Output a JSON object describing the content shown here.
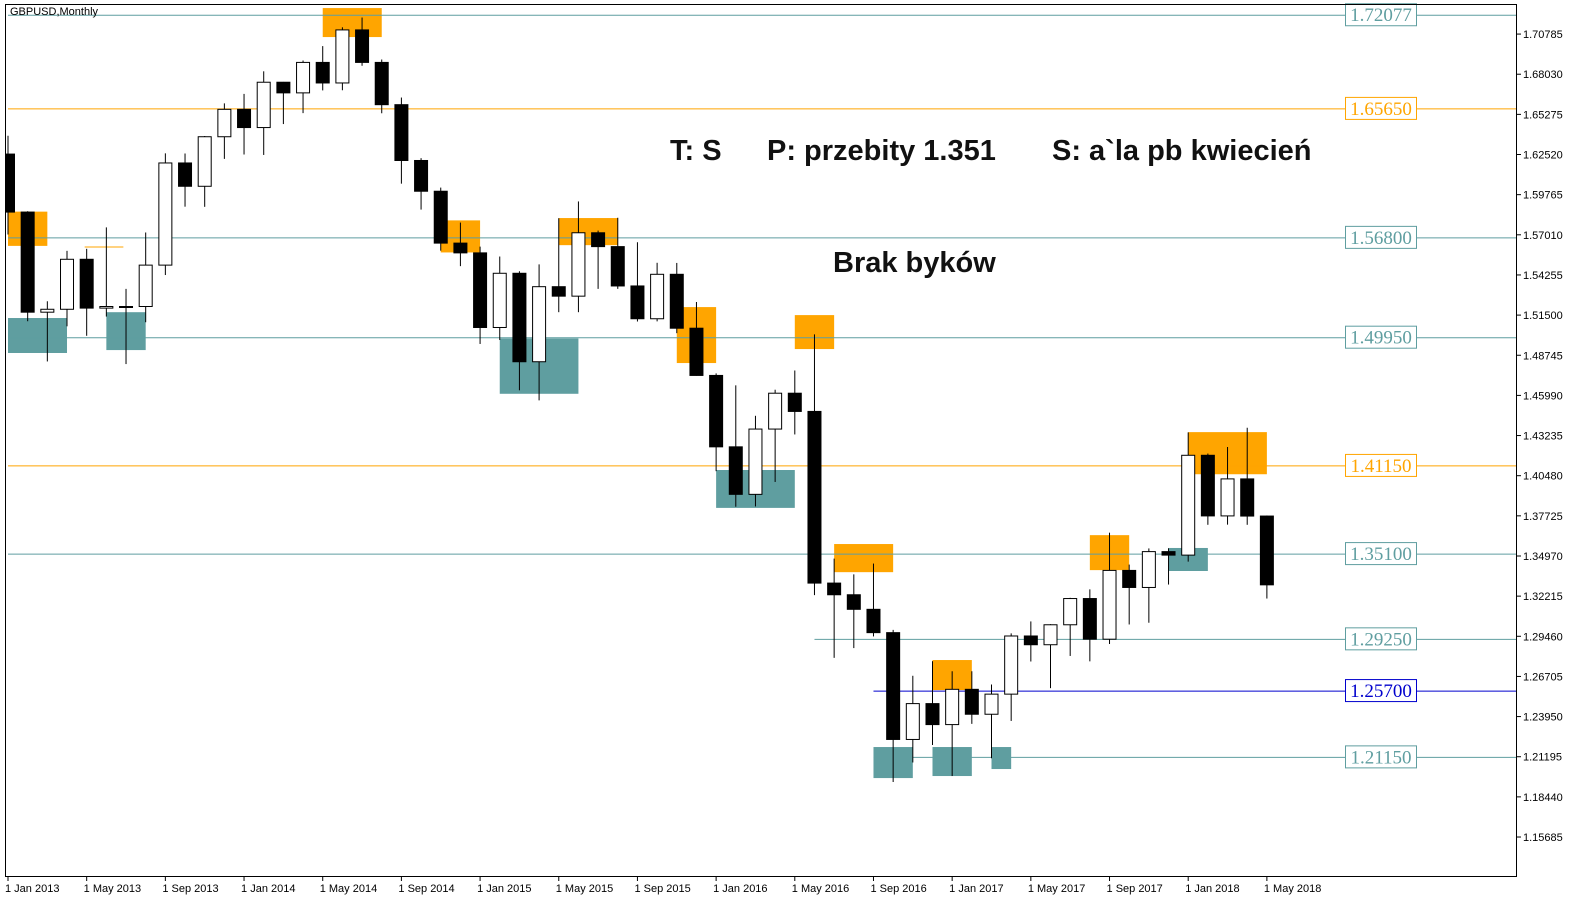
{
  "chart_data": {
    "type": "candlestick",
    "title": "GBPUSD,Monthly",
    "annotations": [
      "T: S",
      "P: przebity 1.351",
      "S: a`la pb kwiecień",
      "Brak byków"
    ],
    "x": [
      "1 Jan 2013",
      "1 Feb 2013",
      "1 Mar 2013",
      "1 Apr 2013",
      "1 May 2013",
      "1 Jun 2013",
      "1 Jul 2013",
      "1 Aug 2013",
      "1 Sep 2013",
      "1 Oct 2013",
      "1 Nov 2013",
      "1 Dec 2013",
      "1 Jan 2014",
      "1 Feb 2014",
      "1 Mar 2014",
      "1 Apr 2014",
      "1 May 2014",
      "1 Jun 2014",
      "1 Jul 2014",
      "1 Aug 2014",
      "1 Sep 2014",
      "1 Oct 2014",
      "1 Nov 2014",
      "1 Dec 2014",
      "1 Jan 2015",
      "1 Feb 2015",
      "1 Mar 2015",
      "1 Apr 2015",
      "1 May 2015",
      "1 Jun 2015",
      "1 Jul 2015",
      "1 Aug 2015",
      "1 Sep 2015",
      "1 Oct 2015",
      "1 Nov 2015",
      "1 Dec 2015",
      "1 Jan 2016",
      "1 Feb 2016",
      "1 Mar 2016",
      "1 Apr 2016",
      "1 May 2016",
      "1 Jun 2016",
      "1 Jul 2016",
      "1 Aug 2016",
      "1 Sep 2016",
      "1 Oct 2016",
      "1 Nov 2016",
      "1 Dec 2016",
      "1 Jan 2017",
      "1 Feb 2017",
      "1 Mar 2017",
      "1 Apr 2017",
      "1 May 2017",
      "1 Jun 2017",
      "1 Jul 2017",
      "1 Aug 2017",
      "1 Sep 2017",
      "1 Oct 2017",
      "1 Nov 2017",
      "1 Dec 2017",
      "1 Jan 2018",
      "1 Feb 2018",
      "1 Mar 2018",
      "1 Apr 2018",
      "1 May 2018"
    ],
    "open": [
      1.6255,
      1.5857,
      1.517,
      1.519,
      1.5533,
      1.5198,
      1.5209,
      1.5209,
      1.5493,
      1.6194,
      1.6034,
      1.6374,
      1.6562,
      1.6437,
      1.6748,
      1.6675,
      1.6884,
      1.6743,
      1.7107,
      1.6884,
      1.6594,
      1.6211,
      1.6,
      1.5644,
      1.5577,
      1.5065,
      1.5437,
      1.483,
      1.5345,
      1.528,
      1.5715,
      1.562,
      1.535,
      1.5125,
      1.543,
      1.506,
      1.4736,
      1.4246,
      1.392,
      1.4368,
      1.4614,
      1.4489,
      1.3311,
      1.3231,
      1.3131,
      1.2971,
      1.2238,
      1.2484,
      1.234,
      1.2582,
      1.2411,
      1.2549,
      1.2948,
      1.2888,
      1.3025,
      1.3205,
      1.2926,
      1.3398,
      1.3281,
      1.3527,
      1.3503,
      1.4188,
      1.3772,
      1.4026,
      1.3771
    ],
    "high": [
      1.6381,
      1.5863,
      1.5245,
      1.5591,
      1.5605,
      1.5752,
      1.533,
      1.5717,
      1.626,
      1.6259,
      1.6379,
      1.6603,
      1.6668,
      1.6823,
      1.675,
      1.6897,
      1.6996,
      1.7125,
      1.7192,
      1.6904,
      1.6643,
      1.6227,
      1.6025,
      1.5785,
      1.562,
      1.5552,
      1.5451,
      1.5498,
      1.5815,
      1.593,
      1.573,
      1.5818,
      1.565,
      1.5509,
      1.5508,
      1.524,
      1.475,
      1.4668,
      1.4459,
      1.4638,
      1.477,
      1.5018,
      1.3479,
      1.3371,
      1.3445,
      1.299,
      1.2675,
      1.2775,
      1.2706,
      1.2706,
      1.2615,
      1.2966,
      1.3048,
      1.3029,
      1.321,
      1.3268,
      1.3657,
      1.3438,
      1.3549,
      1.355,
      1.4345,
      1.42,
      1.4245,
      1.4377,
      1.3775
    ],
    "low": [
      1.5703,
      1.5108,
      1.4832,
      1.5073,
      1.5008,
      1.514,
      1.4814,
      1.5101,
      1.5425,
      1.5894,
      1.5893,
      1.6222,
      1.6252,
      1.6249,
      1.6461,
      1.6536,
      1.6692,
      1.6693,
      1.6861,
      1.6535,
      1.6052,
      1.5874,
      1.5592,
      1.5486,
      1.4952,
      1.4979,
      1.4634,
      1.4565,
      1.517,
      1.517,
      1.533,
      1.533,
      1.5106,
      1.5107,
      1.5026,
      1.4734,
      1.4079,
      1.3835,
      1.3837,
      1.4005,
      1.4331,
      1.3228,
      1.2798,
      1.2865,
      1.2945,
      1.1946,
      1.208,
      1.22,
      1.1987,
      1.2345,
      1.2109,
      1.2365,
      1.2773,
      1.259,
      1.2811,
      1.2774,
      1.2893,
      1.3027,
      1.3039,
      1.3301,
      1.3458,
      1.3711,
      1.3712,
      1.3711,
      1.3205
    ],
    "close": [
      1.5857,
      1.517,
      1.519,
      1.5533,
      1.5198,
      1.5209,
      1.5209,
      1.5493,
      1.6194,
      1.6034,
      1.6374,
      1.6562,
      1.6437,
      1.6748,
      1.6675,
      1.6884,
      1.6743,
      1.7107,
      1.6884,
      1.6594,
      1.6211,
      1.6,
      1.5644,
      1.5577,
      1.5065,
      1.5437,
      1.483,
      1.5345,
      1.528,
      1.5715,
      1.562,
      1.535,
      1.5125,
      1.543,
      1.506,
      1.4736,
      1.4246,
      1.392,
      1.4368,
      1.4614,
      1.4489,
      1.3311,
      1.3231,
      1.3131,
      1.2971,
      1.2238,
      1.2484,
      1.234,
      1.2582,
      1.2411,
      1.2549,
      1.2948,
      1.2888,
      1.3025,
      1.3205,
      1.2926,
      1.3398,
      1.3281,
      1.3527,
      1.3503,
      1.4188,
      1.3772,
      1.4026,
      1.3771,
      1.3299
    ],
    "bull_color": "#ffffff",
    "bear_color": "#000000",
    "xticks": [
      "1 Jan 2013",
      "1 May 2013",
      "1 Sep 2013",
      "1 Jan 2014",
      "1 May 2014",
      "1 Sep 2014",
      "1 Jan 2015",
      "1 May 2015",
      "1 Sep 2015",
      "1 Jan 2016",
      "1 May 2016",
      "1 Sep 2016",
      "1 Jan 2017",
      "1 May 2017",
      "1 Sep 2017",
      "1 Jan 2018",
      "1 May 2018"
    ],
    "ylim": [
      1.1301,
      1.7278
    ],
    "yticks": [
      1.70785,
      {
        "value": 1.6803,
        "label": "1.68030"
      },
      1.65275,
      {
        "value": 1.6252,
        "label": "1.62520"
      },
      1.59765,
      {
        "value": 1.5701,
        "label": "1.57010"
      },
      1.54255,
      {
        "value": 1.515,
        "label": "1.51500"
      },
      1.48745,
      {
        "value": 1.4599,
        "label": "1.45990"
      },
      1.43235,
      {
        "value": 1.4048,
        "label": "1.40480"
      },
      1.37725,
      {
        "value": 1.3497,
        "label": "1.34970"
      },
      1.32215,
      {
        "value": 1.2946,
        "label": "1.29460"
      },
      1.26705,
      {
        "value": 1.2395,
        "label": "1.23950"
      },
      1.21195,
      {
        "value": 1.1844,
        "label": "1.18440"
      },
      1.15685
    ],
    "levels": [
      {
        "value": 1.72077,
        "label": "1.72077",
        "color": "#5f9ea0",
        "from": "1 Jan 2013"
      },
      {
        "value": 1.6565,
        "label": "1.65650",
        "color": "#ffa500",
        "from": "1 Jan 2013"
      },
      {
        "value": 1.568,
        "label": "1.56800",
        "color": "#5f9ea0",
        "from": "1 Jan 2013"
      },
      {
        "value": 1.4995,
        "label": "1.49950",
        "color": "#5f9ea0",
        "from": "1 Jan 2013"
      },
      {
        "value": 1.4115,
        "label": "1.41150",
        "color": "#ffa500",
        "from": "1 Jan 2013"
      },
      {
        "value": 1.351,
        "label": "1.35100",
        "color": "#5f9ea0",
        "from": "1 Jan 2013"
      },
      {
        "value": 1.2925,
        "label": "1.29250",
        "color": "#5f9ea0",
        "from": "1 Jun 2016"
      },
      {
        "value": 1.257,
        "label": "1.25700",
        "color": "#0000cd",
        "from": "1 Sep 2016"
      },
      {
        "value": 1.2115,
        "label": "1.21150",
        "color": "#5f9ea0",
        "from": "1 Sep 2016"
      }
    ],
    "segments": [
      {
        "value": 1.5617,
        "color": "#ffa500",
        "from": "1 May 2013",
        "to": "1 Jun 2013"
      }
    ],
    "zones": [
      {
        "from": "1 Jan 2013",
        "to": "1 Mar 2013",
        "low": 1.5625,
        "high": 1.586,
        "color": "#ffa500"
      },
      {
        "from": "1 May 2014",
        "to": "1 Aug 2014",
        "low": 1.7058,
        "high": 1.7257,
        "color": "#ffa500"
      },
      {
        "from": "1 Nov 2014",
        "to": "1 Jan 2015",
        "low": 1.558,
        "high": 1.58,
        "color": "#ffa500"
      },
      {
        "from": "1 May 2015",
        "to": "1 Aug 2015",
        "low": 1.563,
        "high": 1.5816,
        "color": "#ffa500"
      },
      {
        "from": "1 Nov 2015",
        "to": "1 Jan 2016",
        "low": 1.4821,
        "high": 1.5205,
        "color": "#ffa500"
      },
      {
        "from": "1 May 2016",
        "to": "1 Jul 2016",
        "low": 1.4917,
        "high": 1.515,
        "color": "#ffa500"
      },
      {
        "from": "1 Jul 2016",
        "to": "1 Oct 2016",
        "low": 1.3386,
        "high": 1.3579,
        "color": "#ffa500"
      },
      {
        "from": "1 Dec 2016",
        "to": "1 Feb 2017",
        "low": 1.2577,
        "high": 1.2783,
        "color": "#ffa500"
      },
      {
        "from": "1 Aug 2017",
        "to": "1 Oct 2017",
        "low": 1.34,
        "high": 1.364,
        "color": "#ffa500"
      },
      {
        "from": "1 Jan 2018",
        "to": "1 May 2018",
        "low": 1.4058,
        "high": 1.4347,
        "color": "#ffa500"
      },
      {
        "from": "1 Jan 2013",
        "to": "1 Apr 2013",
        "low": 1.489,
        "high": 1.513,
        "color": "#5f9ea0"
      },
      {
        "from": "1 Jun 2013",
        "to": "1 Aug 2013",
        "low": 1.491,
        "high": 1.517,
        "color": "#5f9ea0"
      },
      {
        "from": "1 Feb 2015",
        "to": "1 Jun 2015",
        "low": 1.461,
        "high": 1.499,
        "color": "#5f9ea0"
      },
      {
        "from": "1 Jan 2016",
        "to": "1 May 2016",
        "low": 1.3827,
        "high": 1.4087,
        "color": "#5f9ea0"
      },
      {
        "from": "1 Sep 2016",
        "to": "1 Nov 2016",
        "low": 1.1973,
        "high": 1.2186,
        "color": "#5f9ea0"
      },
      {
        "from": "1 Dec 2016",
        "to": "1 Feb 2017",
        "low": 1.1987,
        "high": 1.2186,
        "color": "#5f9ea0"
      },
      {
        "from": "1 Mar 2017",
        "to": "1 Apr 2017",
        "low": 1.2035,
        "high": 1.2186,
        "color": "#5f9ea0"
      },
      {
        "from": "1 Dec 2017",
        "to": "1 Feb 2018",
        "low": 1.3394,
        "high": 1.3552,
        "color": "#5f9ea0"
      }
    ]
  }
}
